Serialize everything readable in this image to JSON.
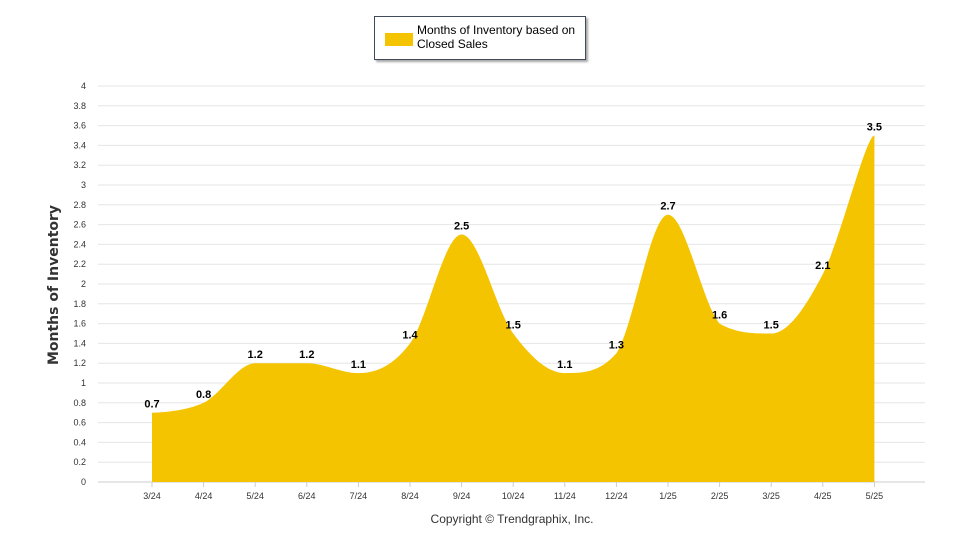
{
  "chart_data": {
    "type": "area",
    "categories": [
      "3/24",
      "4/24",
      "5/24",
      "6/24",
      "7/24",
      "8/24",
      "9/24",
      "10/24",
      "11/24",
      "12/24",
      "1/25",
      "2/25",
      "3/25",
      "4/25",
      "5/25"
    ],
    "series": [
      {
        "name": "Months of Inventory based on Closed Sales",
        "values": [
          0.7,
          0.8,
          1.2,
          1.2,
          1.1,
          1.4,
          2.5,
          1.5,
          1.1,
          1.3,
          2.7,
          1.6,
          1.5,
          2.1,
          3.5
        ],
        "data_labels": [
          "0.7",
          "0.8",
          "1.2",
          "1.2",
          "1.1",
          "1.4",
          "2.5",
          "1.5",
          "1.1",
          "1.3",
          "2.7",
          "1.6",
          "1.5",
          "2.1",
          "3.5"
        ],
        "color": "#f5c400"
      }
    ],
    "ylabel": "Months of Inventory",
    "xlabel": "",
    "ylim": [
      0,
      4
    ],
    "y_ticks": [
      "0",
      "0.2",
      "0.4",
      "0.6",
      "0.8",
      "1",
      "1.2",
      "1.4",
      "1.6",
      "1.8",
      "2",
      "2.2",
      "2.4",
      "2.6",
      "2.8",
      "3",
      "3.2",
      "3.4",
      "3.6",
      "3.8",
      "4"
    ],
    "grid": true,
    "legend_position": "top-center",
    "gridline_color": "#e6e6e6"
  },
  "legend": {
    "label": "Months of Inventory based on Closed Sales"
  },
  "credit": "Copyright © Trendgraphix, Inc."
}
